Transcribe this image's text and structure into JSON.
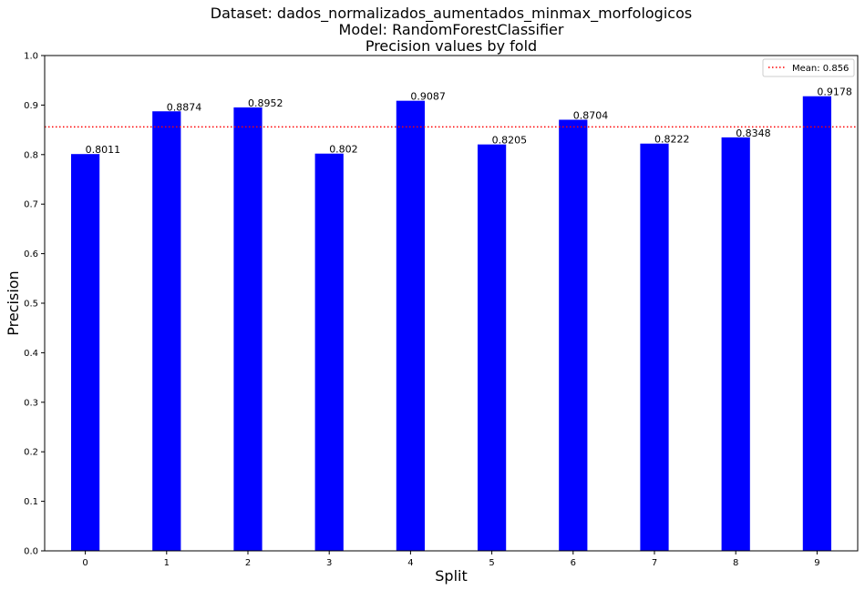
{
  "chart_data": {
    "type": "bar",
    "title_lines": [
      "Dataset: dados_normalizados_aumentados_minmax_morfologicos",
      "Model: RandomForestClassifier",
      "Precision values by fold"
    ],
    "xlabel": "Split",
    "ylabel": "Precision",
    "categories": [
      "0",
      "1",
      "2",
      "3",
      "4",
      "5",
      "6",
      "7",
      "8",
      "9"
    ],
    "values": [
      0.8011,
      0.8874,
      0.8952,
      0.802,
      0.9087,
      0.8205,
      0.8704,
      0.8222,
      0.8348,
      0.9178
    ],
    "value_labels": [
      "0.8011",
      "0.8874",
      "0.8952",
      "0.802",
      "0.9087",
      "0.8205",
      "0.8704",
      "0.8222",
      "0.8348",
      "0.9178"
    ],
    "ylim": [
      0,
      1.0
    ],
    "yticks": [
      0.0,
      0.1,
      0.2,
      0.3,
      0.4,
      0.5,
      0.6,
      0.7,
      0.8,
      0.9,
      1.0
    ],
    "ytick_labels": [
      "0.0",
      "0.1",
      "0.2",
      "0.3",
      "0.4",
      "0.5",
      "0.6",
      "0.7",
      "0.8",
      "0.9",
      "1.0"
    ],
    "bar_color": "#0000ff",
    "mean_line": {
      "value": 0.856,
      "label": "Mean: 0.856",
      "color": "#ff0000",
      "style": "dotted"
    },
    "legend_position": "top-right",
    "grid": false
  }
}
